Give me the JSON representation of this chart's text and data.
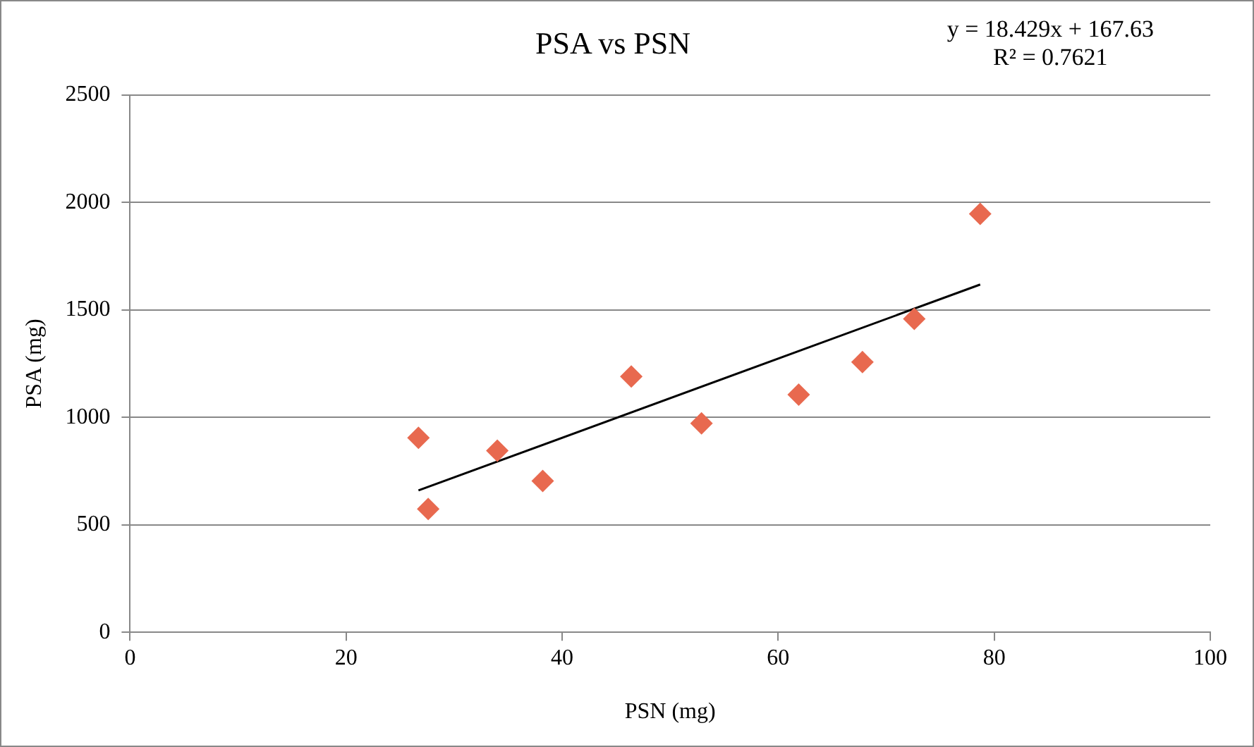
{
  "chart_data": {
    "type": "scatter",
    "title": "PSA vs PSN",
    "xlabel": "PSN (mg)",
    "ylabel": "PSA (mg)",
    "xlim": [
      0,
      100
    ],
    "xticks": [
      0,
      20,
      40,
      60,
      80,
      100
    ],
    "ylim": [
      0,
      2500
    ],
    "yticks": [
      0,
      500,
      1000,
      1500,
      2000,
      2500
    ],
    "grid": "y",
    "legend": false,
    "marker": "diamond",
    "annotations": [
      "y = 18.429x + 167.63",
      "R² = 0.7621"
    ],
    "series": [
      {
        "color": "#e8694f",
        "x": [
          26.7,
          27.6,
          34.0,
          38.2,
          46.4,
          52.9,
          61.9,
          67.8,
          72.6,
          78.7
        ],
        "values": [
          905,
          574,
          845,
          704,
          1190,
          972,
          1106,
          1257,
          1458,
          1947
        ]
      },
      {
        "type": "line",
        "marker": "none",
        "color": "#000000",
        "x": [
          26.7,
          78.7
        ],
        "values": [
          660,
          1618
        ]
      }
    ]
  }
}
